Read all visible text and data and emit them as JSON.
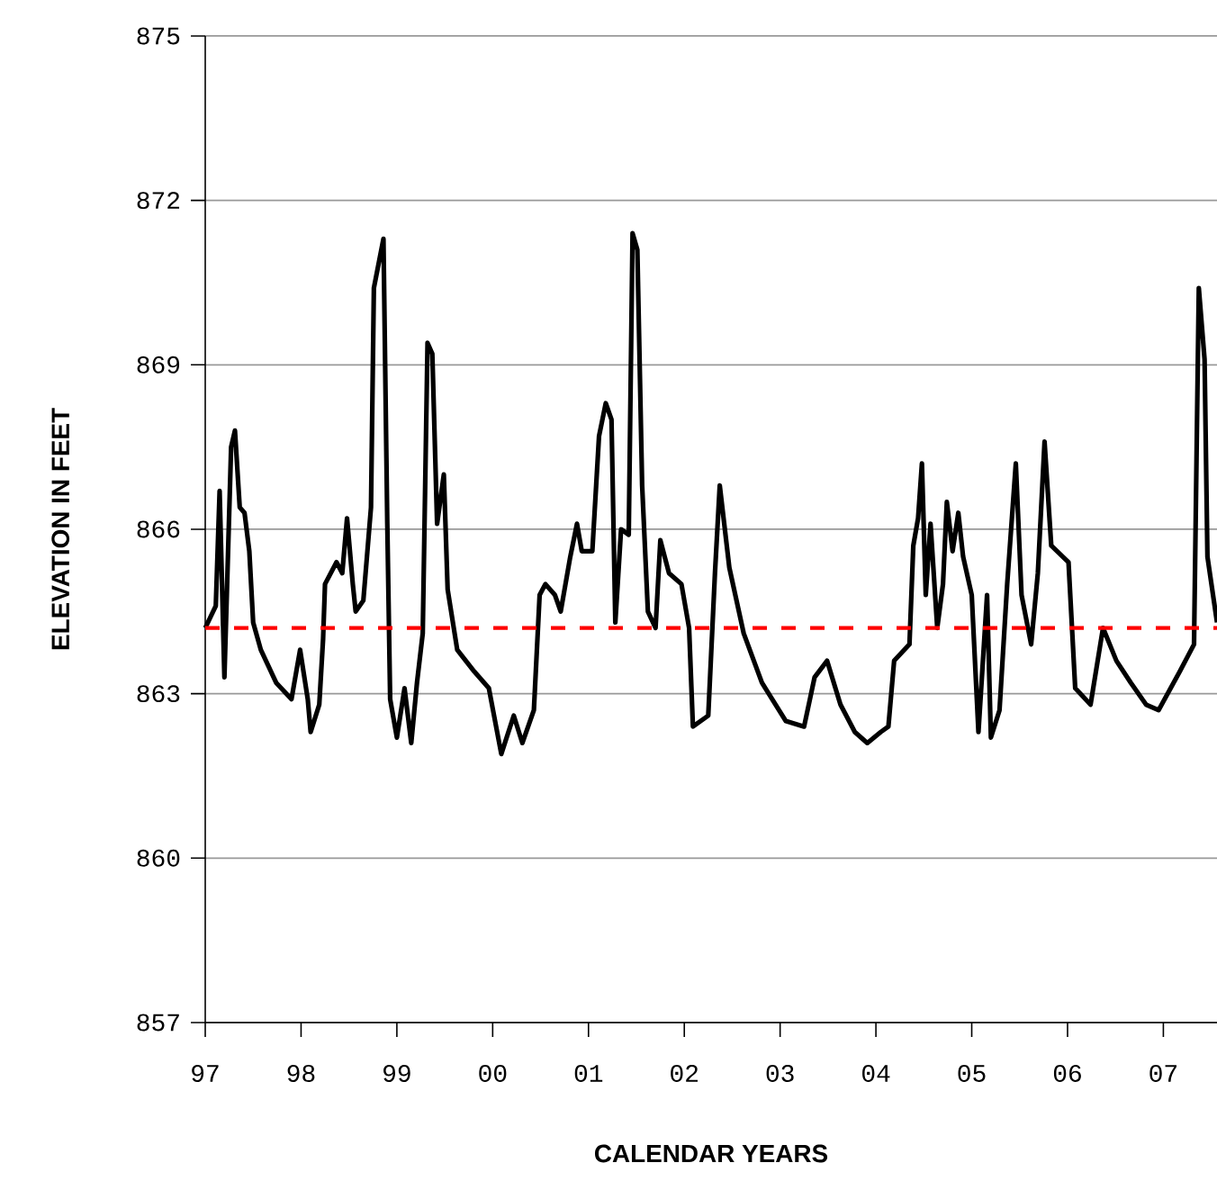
{
  "chart_data": {
    "type": "line",
    "xlabel": "CALENDAR YEARS",
    "ylabel": "ELEVATION IN FEET",
    "xlim": [
      1997,
      2007.56
    ],
    "ylim": [
      857,
      875
    ],
    "xticks": [
      {
        "value": 1997,
        "label": "97"
      },
      {
        "value": 1998,
        "label": "98"
      },
      {
        "value": 1999,
        "label": "99"
      },
      {
        "value": 2000,
        "label": "00"
      },
      {
        "value": 2001,
        "label": "01"
      },
      {
        "value": 2002,
        "label": "02"
      },
      {
        "value": 2003,
        "label": "03"
      },
      {
        "value": 2004,
        "label": "04"
      },
      {
        "value": 2005,
        "label": "05"
      },
      {
        "value": 2006,
        "label": "06"
      },
      {
        "value": 2007,
        "label": "07"
      }
    ],
    "yticks": [
      857,
      860,
      863,
      866,
      869,
      872,
      875
    ],
    "grid": "y",
    "marker": "none",
    "line_style": "solid",
    "ref_lines": [
      {
        "axis": "y",
        "value": 864.2,
        "color": "#ff0000",
        "line_style": "dashed"
      }
    ],
    "series": [
      {
        "color": "#000000",
        "x": [
          1997.0,
          1997.11,
          1997.15,
          1997.2,
          1997.27,
          1997.31,
          1997.36,
          1997.41,
          1997.46,
          1997.5,
          1997.58,
          1997.74,
          1997.9,
          1997.99,
          1998.07,
          1998.1,
          1998.19,
          1998.23,
          1998.25,
          1998.37,
          1998.43,
          1998.48,
          1998.54,
          1998.57,
          1998.65,
          1998.73,
          1998.76,
          1998.86,
          1998.9,
          1998.93,
          1999.0,
          1999.08,
          1999.15,
          1999.21,
          1999.27,
          1999.32,
          1999.37,
          1999.42,
          1999.49,
          1999.53,
          1999.63,
          1999.81,
          1999.96,
          2000.09,
          2000.22,
          2000.31,
          2000.43,
          2000.49,
          2000.55,
          2000.65,
          2000.71,
          2000.81,
          2000.88,
          2000.93,
          2001.04,
          2001.11,
          2001.18,
          2001.24,
          2001.28,
          2001.34,
          2001.42,
          2001.46,
          2001.51,
          2001.56,
          2001.62,
          2001.7,
          2001.75,
          2001.84,
          2001.97,
          2002.05,
          2002.09,
          2002.25,
          2002.32,
          2002.37,
          2002.47,
          2002.62,
          2002.81,
          2003.06,
          2003.25,
          2003.36,
          2003.49,
          2003.63,
          2003.78,
          2003.91,
          2004.05,
          2004.13,
          2004.19,
          2004.35,
          2004.39,
          2004.44,
          2004.48,
          2004.52,
          2004.57,
          2004.64,
          2004.7,
          2004.74,
          2004.8,
          2004.86,
          2004.91,
          2005.0,
          2005.07,
          2005.16,
          2005.2,
          2005.29,
          2005.37,
          2005.46,
          2005.52,
          2005.62,
          2005.69,
          2005.76,
          2005.83,
          2006.01,
          2006.08,
          2006.24,
          2006.37,
          2006.51,
          2006.66,
          2006.82,
          2006.95,
          2007.17,
          2007.32,
          2007.37,
          2007.43,
          2007.46,
          2007.56
        ],
        "values": [
          864.2,
          864.6,
          866.7,
          863.3,
          867.5,
          867.8,
          866.4,
          866.3,
          865.6,
          864.3,
          863.8,
          863.2,
          862.9,
          863.8,
          862.9,
          862.3,
          862.8,
          864.0,
          865.0,
          865.4,
          865.2,
          866.2,
          865.0,
          864.5,
          864.7,
          866.4,
          870.4,
          871.3,
          866.1,
          862.9,
          862.2,
          863.1,
          862.1,
          863.2,
          864.1,
          869.4,
          869.2,
          866.1,
          867.0,
          864.9,
          863.8,
          863.4,
          863.1,
          861.9,
          862.6,
          862.1,
          862.7,
          864.8,
          865.0,
          864.8,
          864.5,
          865.5,
          866.1,
          865.6,
          865.6,
          867.7,
          868.3,
          868.0,
          864.3,
          866.0,
          865.9,
          871.4,
          871.1,
          866.8,
          864.5,
          864.2,
          865.8,
          865.2,
          865.0,
          864.2,
          862.4,
          862.6,
          865.2,
          866.8,
          865.3,
          864.1,
          863.2,
          862.5,
          862.4,
          863.3,
          863.6,
          862.8,
          862.3,
          862.1,
          862.3,
          862.4,
          863.6,
          863.9,
          865.7,
          866.2,
          867.2,
          864.8,
          866.1,
          864.2,
          865.0,
          866.5,
          865.6,
          866.3,
          865.5,
          864.8,
          862.3,
          864.8,
          862.2,
          862.7,
          865.0,
          867.2,
          864.8,
          863.9,
          865.2,
          867.6,
          865.7,
          865.4,
          863.1,
          862.8,
          864.2,
          863.6,
          863.2,
          862.8,
          862.7,
          863.4,
          863.9,
          870.4,
          869.1,
          865.5,
          864.3
        ]
      }
    ]
  }
}
